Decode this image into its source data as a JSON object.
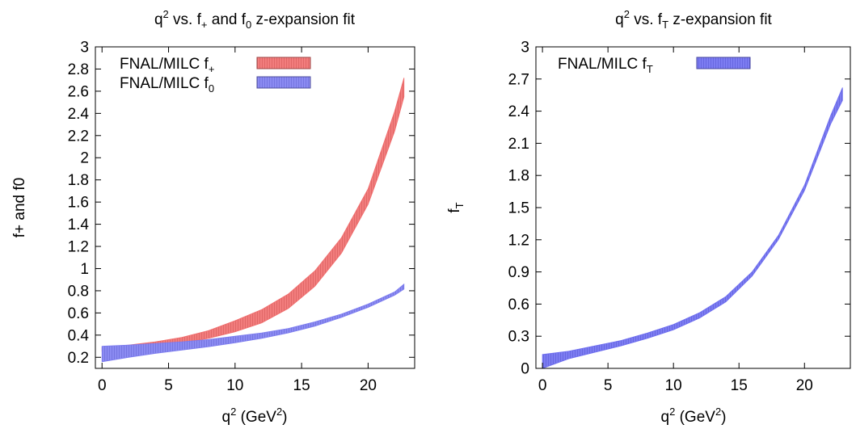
{
  "chart_data": [
    {
      "type": "area",
      "title": {
        "base": "q",
        "sup": "2",
        "text1": " vs. f",
        "sub1": "+",
        "text2": " and f",
        "sub2": "0",
        "text3": " z-expansion fit"
      },
      "xlabel": {
        "base": "q",
        "sup": "2",
        "rest1": " (GeV",
        "sup2": "2",
        "rest2": ")"
      },
      "ylabel": "f+ and f0",
      "xlim": [
        -0.5,
        23.5
      ],
      "ylim": [
        0.1,
        3.0
      ],
      "xticks": [
        "0",
        "5",
        "10",
        "15",
        "20"
      ],
      "yticks": [
        "0.2",
        "0.4",
        "0.6",
        "0.8",
        "1",
        "1.2",
        "1.4",
        "1.6",
        "1.8",
        "2",
        "2.2",
        "2.4",
        "2.6",
        "2.8",
        "3"
      ],
      "legend_position": "top-left",
      "series": [
        {
          "name": {
            "base": "FNAL/MILC f",
            "sub": "+"
          },
          "color": "#f06b6b",
          "x": [
            0,
            2,
            4,
            6,
            8,
            10,
            12,
            14,
            16,
            18,
            20,
            22,
            22.7
          ],
          "lower": [
            0.255,
            0.27,
            0.295,
            0.33,
            0.37,
            0.43,
            0.51,
            0.64,
            0.84,
            1.14,
            1.58,
            2.24,
            2.55
          ],
          "upper": [
            0.29,
            0.31,
            0.34,
            0.38,
            0.44,
            0.53,
            0.63,
            0.77,
            0.98,
            1.28,
            1.72,
            2.42,
            2.72
          ]
        },
        {
          "name": {
            "base": "FNAL/MILC f",
            "sub": "0"
          },
          "color": "#7b7bf0",
          "x": [
            0,
            2,
            4,
            6,
            8,
            10,
            12,
            14,
            16,
            18,
            20,
            22,
            22.7
          ],
          "lower": [
            0.16,
            0.2,
            0.235,
            0.265,
            0.295,
            0.33,
            0.37,
            0.42,
            0.48,
            0.56,
            0.65,
            0.76,
            0.815
          ],
          "upper": [
            0.3,
            0.31,
            0.325,
            0.34,
            0.36,
            0.39,
            0.42,
            0.46,
            0.52,
            0.59,
            0.68,
            0.79,
            0.86
          ]
        }
      ]
    },
    {
      "type": "area",
      "title": {
        "base": "q",
        "sup": "2",
        "text1": " vs. f",
        "sub1": "T",
        "text2": " z-expansion fit"
      },
      "xlabel": {
        "base": "q",
        "sup": "2",
        "rest1": " (GeV",
        "sup2": "2",
        "rest2": ")"
      },
      "ylabel": {
        "base": "f",
        "sub": "T"
      },
      "xlim": [
        -0.5,
        23.5
      ],
      "ylim": [
        0,
        3.0
      ],
      "xticks": [
        "0",
        "5",
        "10",
        "15",
        "20"
      ],
      "yticks": [
        "0",
        "0.3",
        "0.6",
        "0.9",
        "1.2",
        "1.5",
        "1.8",
        "2.1",
        "2.4",
        "2.7",
        "3"
      ],
      "legend_position": "top-left",
      "series": [
        {
          "name": {
            "base": "FNAL/MILC f",
            "sub": "T"
          },
          "color": "#6b6bf0",
          "x": [
            0,
            2,
            4,
            6,
            8,
            10,
            12,
            14,
            16,
            18,
            20,
            22,
            22.9
          ],
          "lower": [
            0.0,
            0.09,
            0.15,
            0.21,
            0.28,
            0.36,
            0.47,
            0.62,
            0.86,
            1.2,
            1.66,
            2.28,
            2.5
          ],
          "upper": [
            0.13,
            0.16,
            0.21,
            0.26,
            0.33,
            0.41,
            0.52,
            0.67,
            0.9,
            1.24,
            1.71,
            2.36,
            2.62
          ]
        }
      ]
    }
  ]
}
